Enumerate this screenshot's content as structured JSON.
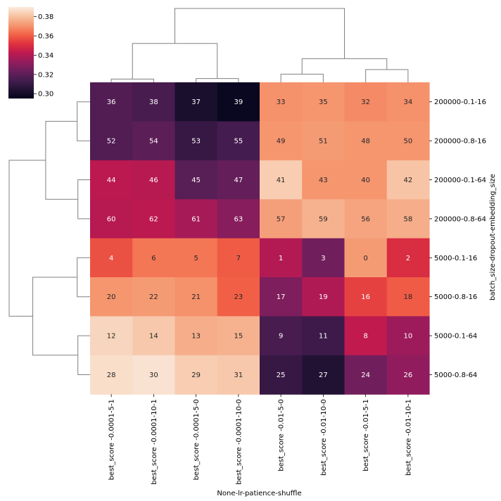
{
  "chart_data": {
    "type": "heatmap",
    "title": "",
    "xlabel": "None-lr-patience-shuffle",
    "ylabel": "batch_size-dropout-embedding_size",
    "columns": [
      "best_score -0.0001-5-1",
      "best_score -0.0001-10-1",
      "best_score -0.0001-5-0",
      "best_score -0.0001-10-0",
      "best_score -0.01-5-0",
      "best_score -0.01-10-0",
      "best_score -0.01-5-1",
      "best_score -0.01-10-1"
    ],
    "rows": [
      "200000-0.1-16",
      "200000-0.8-16",
      "200000-0.1-64",
      "200000-0.8-64",
      "5000-0.1-16",
      "5000-0.8-16",
      "5000-0.1-64",
      "5000-0.8-64"
    ],
    "annotations": [
      [
        36,
        38,
        37,
        39,
        33,
        35,
        32,
        34
      ],
      [
        52,
        54,
        53,
        55,
        49,
        51,
        48,
        50
      ],
      [
        44,
        46,
        45,
        47,
        41,
        43,
        40,
        42
      ],
      [
        60,
        62,
        61,
        63,
        57,
        59,
        56,
        58
      ],
      [
        4,
        6,
        5,
        7,
        1,
        3,
        0,
        2
      ],
      [
        20,
        22,
        21,
        23,
        17,
        19,
        16,
        18
      ],
      [
        12,
        14,
        13,
        15,
        9,
        11,
        8,
        10
      ],
      [
        28,
        30,
        29,
        31,
        25,
        27,
        24,
        26
      ]
    ],
    "values": [
      [
        0.317,
        0.315,
        0.302,
        0.297,
        0.37,
        0.371,
        0.369,
        0.37
      ],
      [
        0.317,
        0.32,
        0.31,
        0.314,
        0.371,
        0.372,
        0.371,
        0.371
      ],
      [
        0.342,
        0.341,
        0.319,
        0.322,
        0.383,
        0.371,
        0.371,
        0.381
      ],
      [
        0.341,
        0.342,
        0.337,
        0.33,
        0.373,
        0.377,
        0.374,
        0.376
      ],
      [
        0.358,
        0.365,
        0.365,
        0.36,
        0.34,
        0.325,
        0.372,
        0.35
      ],
      [
        0.371,
        0.372,
        0.37,
        0.361,
        0.328,
        0.339,
        0.355,
        0.36
      ],
      [
        0.385,
        0.382,
        0.376,
        0.377,
        0.315,
        0.312,
        0.343,
        0.335
      ],
      [
        0.387,
        0.388,
        0.383,
        0.382,
        0.31,
        0.304,
        0.325,
        0.332
      ]
    ],
    "colorbar": {
      "min": 0.295,
      "max": 0.39,
      "ticks": [
        "0.30",
        "0.32",
        "0.34",
        "0.36",
        "0.38"
      ],
      "tick_values": [
        0.3,
        0.32,
        0.34,
        0.36,
        0.38
      ],
      "colormap": "rocket"
    },
    "dendrogram_columns": {
      "leaf_order": [
        "best_score -0.0001-5-1",
        "best_score -0.0001-10-1",
        "best_score -0.0001-5-0",
        "best_score -0.0001-10-0",
        "best_score -0.01-5-0",
        "best_score -0.01-10-0",
        "best_score -0.01-5-1",
        "best_score -0.01-10-1"
      ],
      "merges": [
        [
          0,
          1,
          0.012
        ],
        [
          2,
          3,
          0.014
        ],
        [
          4,
          5,
          0.03
        ],
        [
          6,
          7,
          0.047
        ],
        [
          8,
          9,
          0.143
        ],
        [
          10,
          11,
          0.087
        ],
        [
          12,
          13,
          0.272
        ]
      ]
    },
    "dendrogram_rows": {
      "leaf_order": [
        "200000-0.1-16",
        "200000-0.8-16",
        "200000-0.1-64",
        "200000-0.8-64",
        "5000-0.1-16",
        "5000-0.8-16",
        "5000-0.1-64",
        "5000-0.8-64"
      ],
      "merges": [
        [
          0,
          1,
          0.018
        ],
        [
          2,
          3,
          0.017
        ],
        [
          4,
          5,
          0.018
        ],
        [
          6,
          7,
          0.017
        ],
        [
          8,
          9,
          0.062
        ],
        [
          10,
          11,
          0.08
        ],
        [
          12,
          13,
          0.113
        ]
      ]
    }
  }
}
